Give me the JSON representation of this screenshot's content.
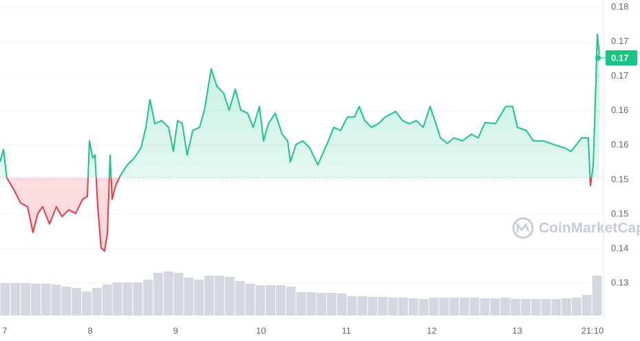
{
  "chart_data": {
    "type": "line",
    "watermark": "CoinMarketCap",
    "up_color": "#16c784",
    "down_color": "#ea3943",
    "baseline": 0.1511,
    "grid": true,
    "xlim": [
      6.944,
      13.995
    ],
    "ylim": [
      0.1285,
      0.18
    ],
    "xticks": [
      {
        "value": 7,
        "label": "7"
      },
      {
        "value": 8,
        "label": "8"
      },
      {
        "value": 9,
        "label": "9"
      },
      {
        "value": 10,
        "label": "10"
      },
      {
        "value": 11,
        "label": "11"
      },
      {
        "value": 12,
        "label": "12"
      },
      {
        "value": 13,
        "label": "13"
      },
      {
        "value": 13.882,
        "label": "21:10"
      }
    ],
    "yticks": [
      {
        "value": 0.1788,
        "label": "0.18"
      },
      {
        "value": 0.1732,
        "label": "0.17"
      },
      {
        "value": 0.1676,
        "label": "0.17"
      },
      {
        "value": 0.162,
        "label": "0.16"
      },
      {
        "value": 0.1564,
        "label": "0.16"
      },
      {
        "value": 0.1508,
        "label": "0.15"
      },
      {
        "value": 0.1452,
        "label": "0.15"
      },
      {
        "value": 0.1396,
        "label": "0.14"
      },
      {
        "value": 0.134,
        "label": "0.13"
      }
    ],
    "current_price": {
      "value": 0.1706,
      "label": "0.17"
    },
    "series": [
      {
        "x": [
          6.944,
          6.984,
          7.024,
          7.105,
          7.185,
          7.266,
          7.33,
          7.387,
          7.443,
          7.524,
          7.604,
          7.669,
          7.749,
          7.83,
          7.911,
          7.967,
          7.991,
          8.031,
          8.056,
          8.088,
          8.128,
          8.168,
          8.201,
          8.233,
          8.257,
          8.297,
          8.354,
          8.434,
          8.515,
          8.596,
          8.652,
          8.7,
          8.757,
          8.837,
          8.918,
          8.974,
          9.023,
          9.079,
          9.135,
          9.2,
          9.28,
          9.337,
          9.417,
          9.482,
          9.562,
          9.627,
          9.699,
          9.764,
          9.844,
          9.909,
          9.981,
          10.03,
          10.086,
          10.167,
          10.247,
          10.312,
          10.344,
          10.409,
          10.489,
          10.57,
          10.666,
          10.715,
          10.771,
          10.852,
          10.932,
          11.013,
          11.094,
          11.15,
          11.214,
          11.295,
          11.375,
          11.456,
          11.577,
          11.657,
          11.738,
          11.819,
          11.899,
          11.98,
          12.036,
          12.101,
          12.181,
          12.262,
          12.359,
          12.463,
          12.544,
          12.624,
          12.745,
          12.866,
          12.947,
          13.003,
          13.108,
          13.188,
          13.309,
          13.43,
          13.551,
          13.632,
          13.753,
          13.833,
          13.857,
          13.89,
          13.914,
          13.938,
          13.962
        ],
        "values": [
          0.1537,
          0.1557,
          0.1511,
          0.1492,
          0.147,
          0.1464,
          0.1422,
          0.1453,
          0.1464,
          0.1436,
          0.1464,
          0.1448,
          0.1459,
          0.1453,
          0.1476,
          0.1481,
          0.1571,
          0.1543,
          0.1548,
          0.1464,
          0.1397,
          0.1392,
          0.142,
          0.1548,
          0.1476,
          0.1498,
          0.1515,
          0.1532,
          0.1543,
          0.156,
          0.1593,
          0.1638,
          0.1599,
          0.1604,
          0.1593,
          0.1554,
          0.1604,
          0.1599,
          0.1548,
          0.1588,
          0.1593,
          0.1621,
          0.1688,
          0.166,
          0.1649,
          0.1621,
          0.1655,
          0.1621,
          0.1616,
          0.1593,
          0.1627,
          0.1571,
          0.1599,
          0.1616,
          0.1582,
          0.1571,
          0.1537,
          0.1565,
          0.1571,
          0.156,
          0.1532,
          0.1548,
          0.1565,
          0.1593,
          0.1588,
          0.161,
          0.161,
          0.1627,
          0.1604,
          0.1593,
          0.1599,
          0.161,
          0.1619,
          0.1604,
          0.1599,
          0.1604,
          0.1593,
          0.1627,
          0.1604,
          0.1576,
          0.1567,
          0.1576,
          0.1571,
          0.1582,
          0.1576,
          0.1601,
          0.1599,
          0.1627,
          0.1627,
          0.1593,
          0.1588,
          0.1571,
          0.1571,
          0.1565,
          0.156,
          0.1554,
          0.1576,
          0.1576,
          0.1498,
          0.1532,
          0.1632,
          0.1744,
          0.1711
        ]
      }
    ],
    "volume": {
      "color": "#d3d8e0",
      "values": [
        47,
        47,
        47,
        46,
        46,
        45,
        42,
        40,
        35,
        40,
        45,
        48,
        48,
        48,
        52,
        62,
        64,
        62,
        55,
        52,
        58,
        58,
        56,
        50,
        46,
        44,
        44,
        44,
        42,
        34,
        34,
        33,
        33,
        32,
        28,
        28,
        27,
        27,
        26,
        26,
        25,
        24,
        26,
        26,
        26,
        26,
        26,
        25,
        25,
        26,
        24,
        24,
        24,
        24,
        24,
        25,
        26,
        30,
        58
      ]
    }
  }
}
